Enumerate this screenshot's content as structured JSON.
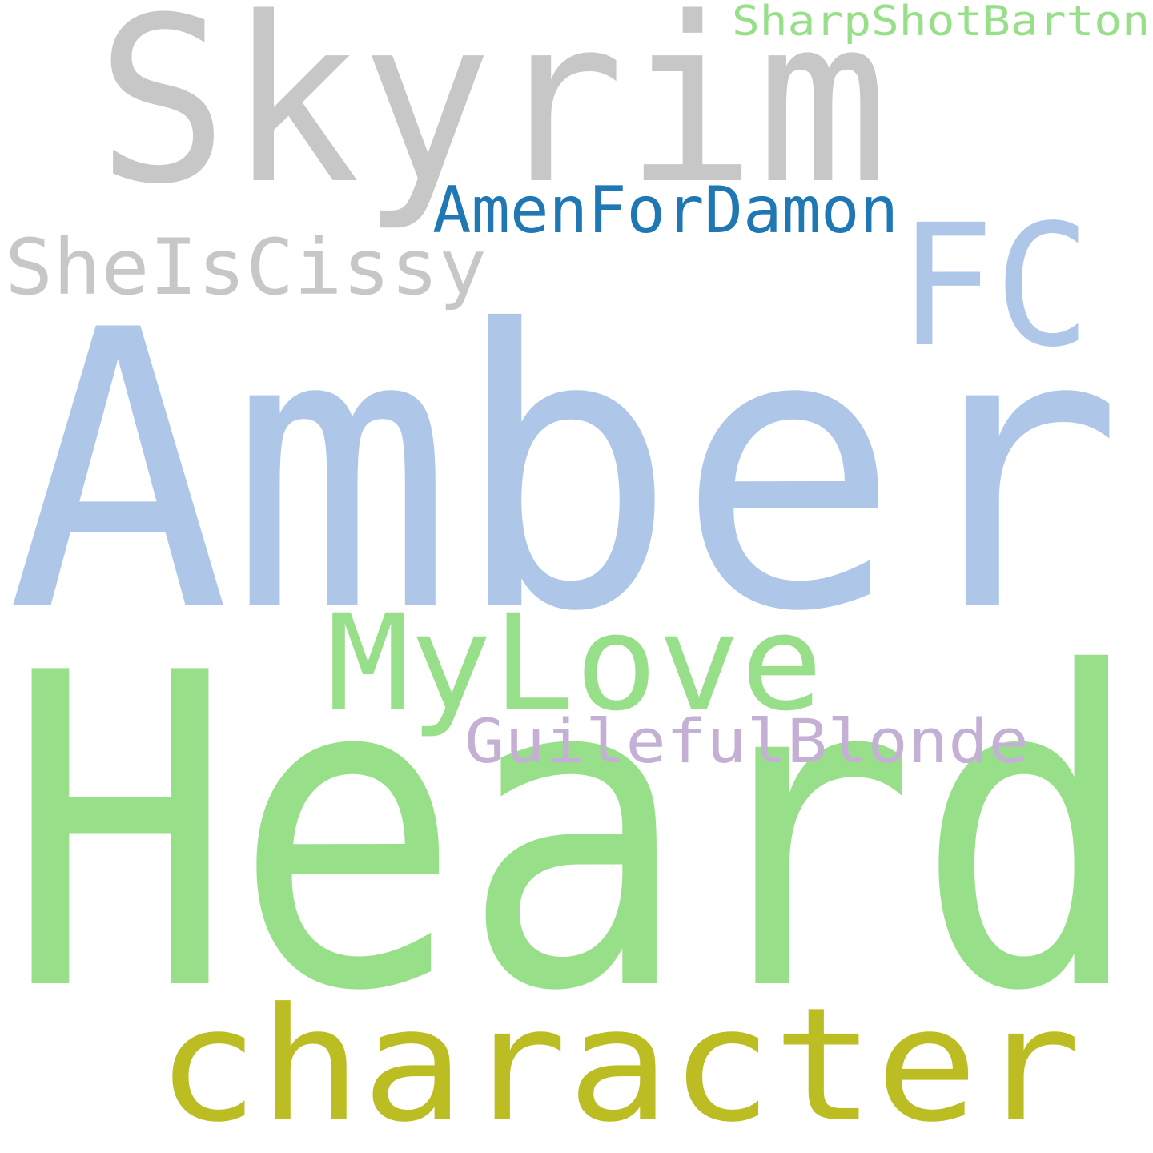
{
  "word_cloud": {
    "background": "#ffffff",
    "words": [
      {
        "text": "Heard",
        "color": "#98df8a"
      },
      {
        "text": "Amber",
        "color": "#aec7e8"
      },
      {
        "text": "Skyrim",
        "color": "#c7c7c7"
      },
      {
        "text": "character",
        "color": "#bcbd22"
      },
      {
        "text": "FC",
        "color": "#aec7e8"
      },
      {
        "text": "MyLove",
        "color": "#98df8a"
      },
      {
        "text": "SheIsCissy",
        "color": "#c7c7c7"
      },
      {
        "text": "AmenForDamon",
        "color": "#1f77b4"
      },
      {
        "text": "GuilefulBlonde",
        "color": "#c5b0d5"
      },
      {
        "text": "SharpShotBarton",
        "color": "#98df8a"
      }
    ]
  }
}
